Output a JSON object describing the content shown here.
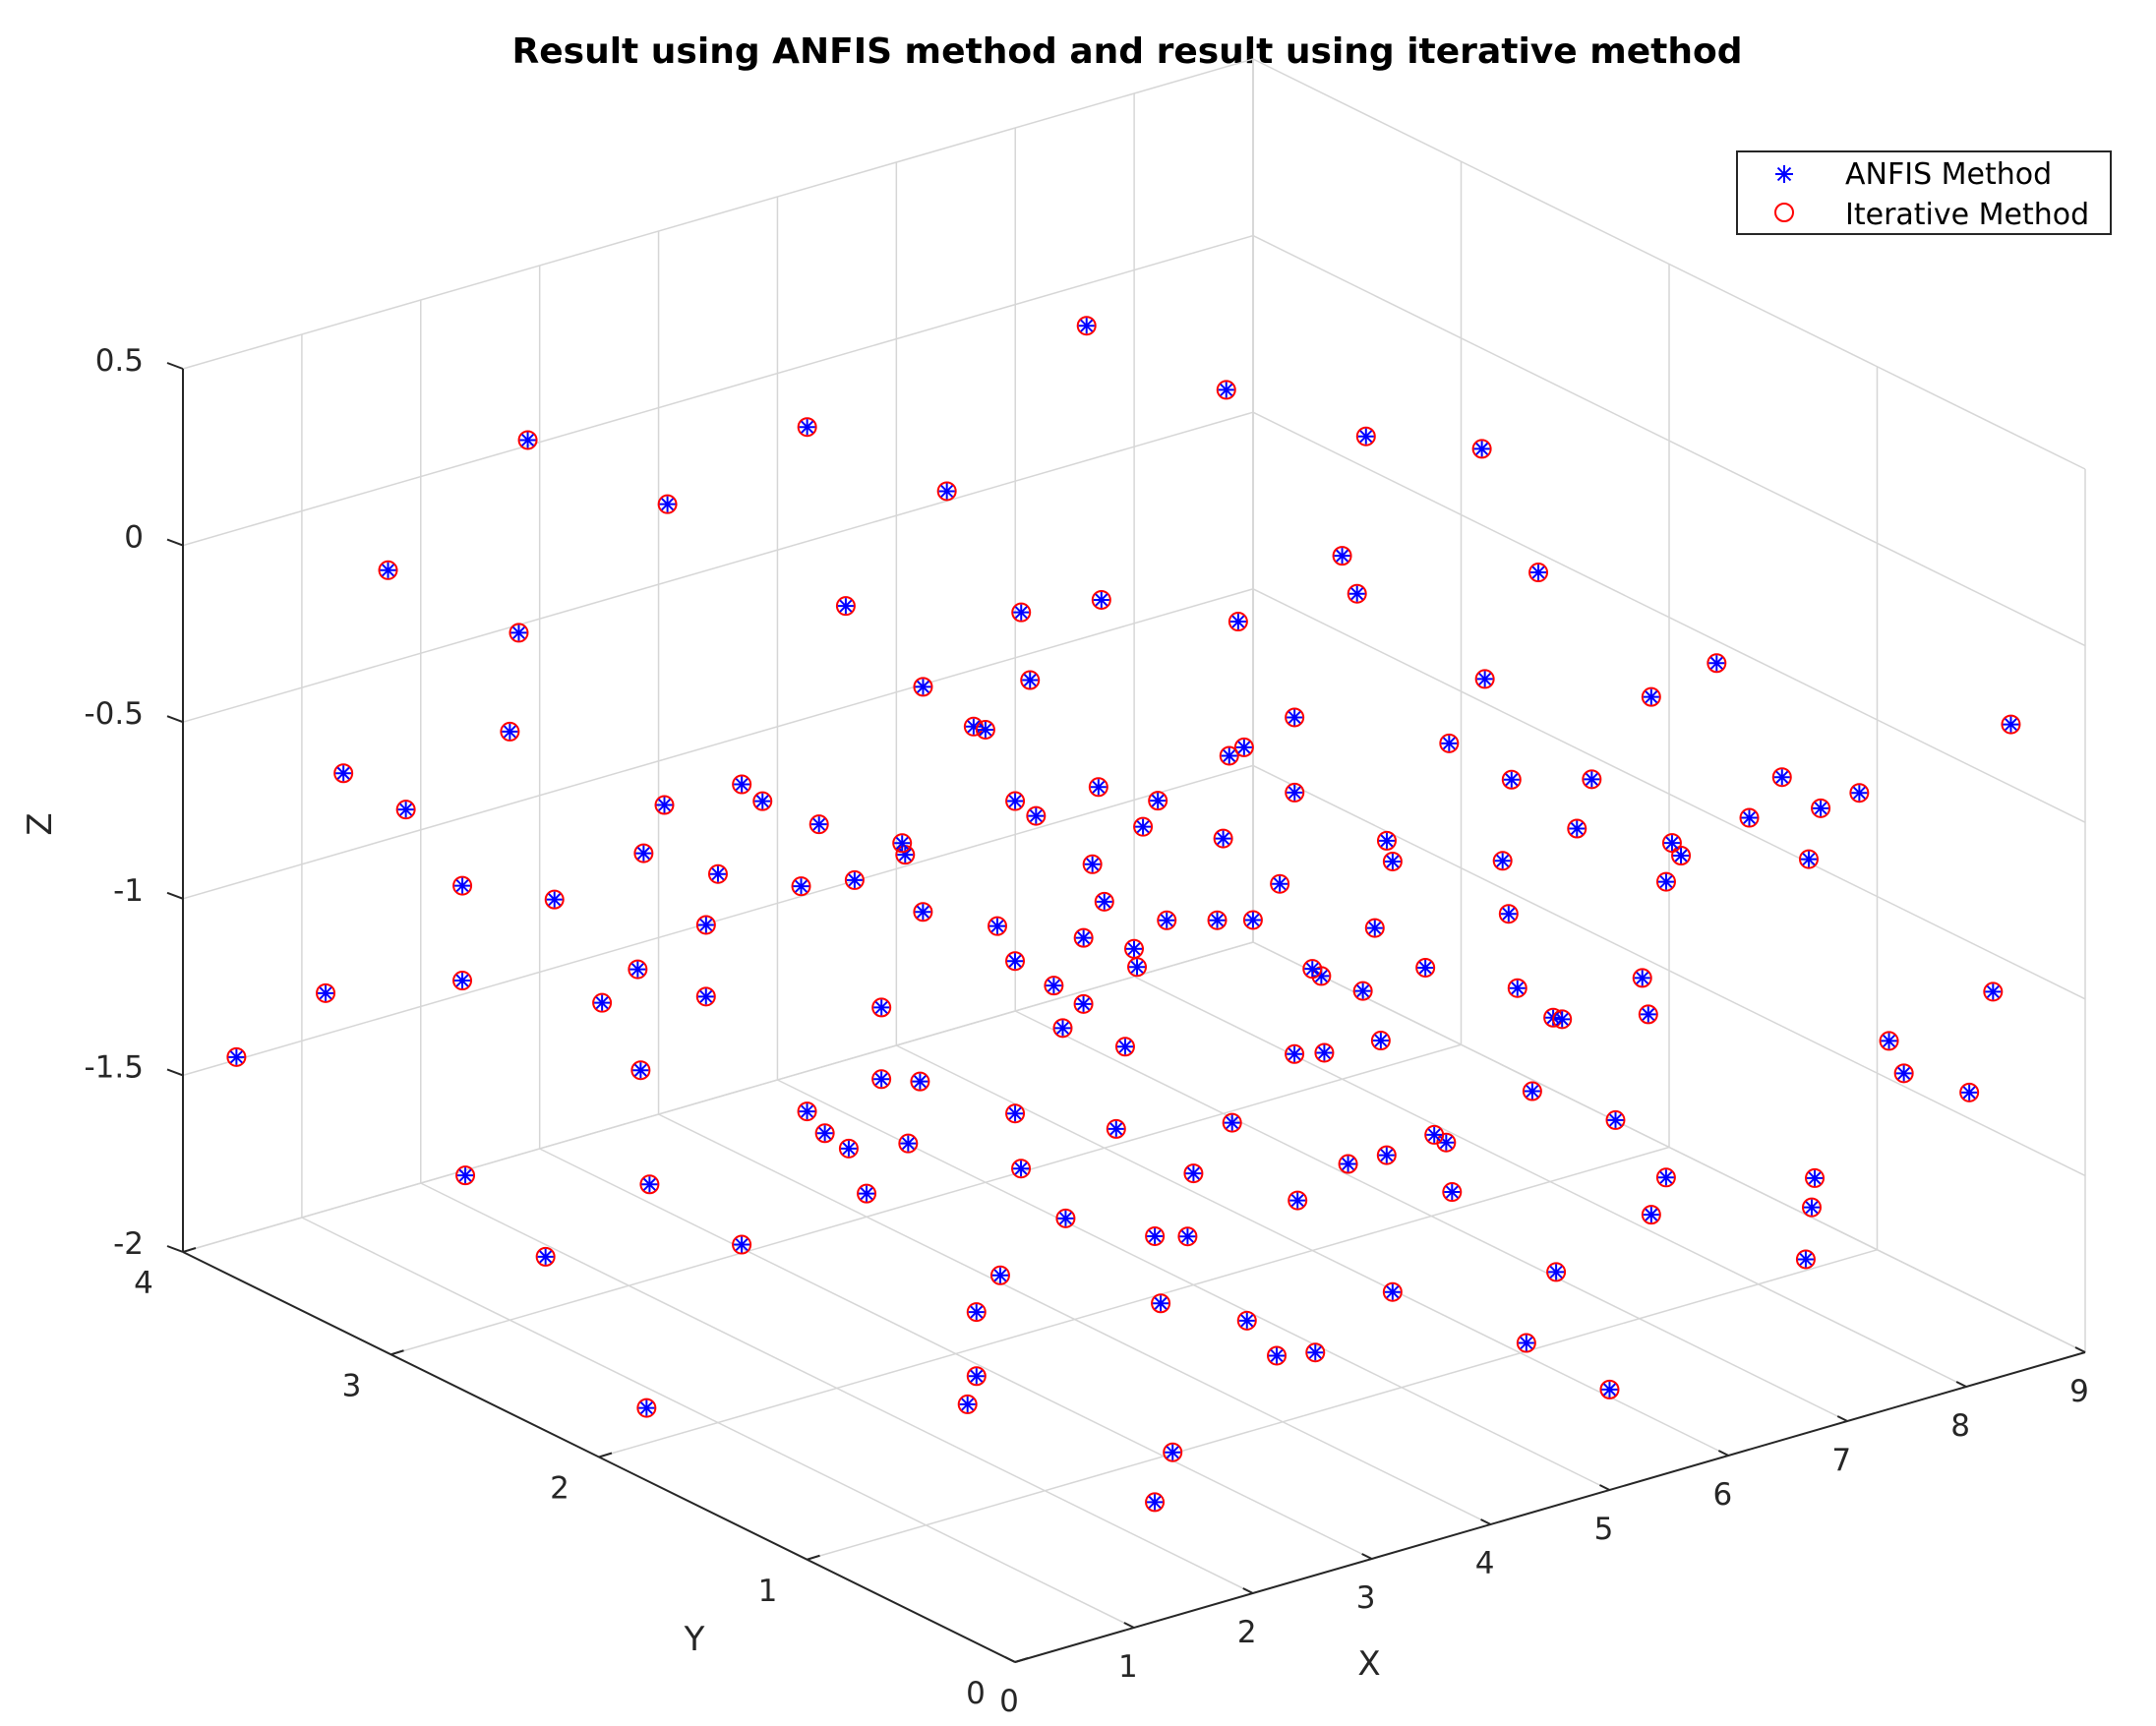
{
  "chart_data": {
    "type": "scatter3d",
    "title": "Result using ANFIS method and result using iterative method",
    "xlabel": "X",
    "ylabel": "Y",
    "zlabel": "Z",
    "xlim": [
      0,
      9
    ],
    "ylim": [
      0,
      4
    ],
    "zlim": [
      -2,
      0.5
    ],
    "xticks": [
      0,
      1,
      2,
      3,
      4,
      5,
      6,
      7,
      8,
      9
    ],
    "yticks": [
      0,
      1,
      2,
      3,
      4
    ],
    "zticks": [
      -2,
      -1.5,
      -1,
      -0.5,
      0,
      0.5
    ],
    "xtick_labels": [
      "0",
      "1",
      "2",
      "3",
      "4",
      "5",
      "6",
      "7",
      "8",
      "9"
    ],
    "ytick_labels": [
      "0",
      "1",
      "2",
      "3",
      "4"
    ],
    "ztick_labels": [
      "-2",
      "-1.5",
      "-1",
      "-0.5",
      "0",
      "0.5"
    ],
    "grid": true,
    "legend_position": "top-right",
    "series": [
      {
        "name": "ANFIS Method",
        "marker": "asterisk",
        "color": "#0000ff"
      },
      {
        "name": "Iterative Method",
        "marker": "circle",
        "color": "#ff0000"
      }
    ],
    "points_note": "",
    "points": [
      [
        0.3,
        3.4,
        -0.5
      ],
      [
        0.5,
        3.6,
        -1.2
      ],
      [
        0.8,
        3.1,
        -1.6
      ],
      [
        1.2,
        2.9,
        -0.8
      ],
      [
        1.6,
        3.3,
        -0.2
      ],
      [
        2.1,
        3.0,
        -1.4
      ],
      [
        2.6,
        2.7,
        -0.6
      ],
      [
        3.1,
        3.2,
        -1.0
      ],
      [
        3.5,
        2.8,
        -1.7
      ],
      [
        4.0,
        3.1,
        -0.3
      ],
      [
        4.4,
        2.6,
        -1.1
      ],
      [
        4.9,
        3.0,
        -0.7
      ],
      [
        5.3,
        2.5,
        -1.5
      ],
      [
        5.8,
        2.9,
        -0.4
      ],
      [
        6.2,
        2.4,
        -1.2
      ],
      [
        6.7,
        2.8,
        -0.9
      ],
      [
        7.1,
        2.3,
        -1.6
      ],
      [
        7.6,
        2.7,
        -0.5
      ],
      [
        8.0,
        2.2,
        -1.3
      ],
      [
        8.5,
        2.6,
        -0.8
      ],
      [
        0.9,
        2.2,
        -0.3
      ],
      [
        1.4,
        1.8,
        -1.1
      ],
      [
        1.9,
        2.4,
        -1.7
      ],
      [
        2.4,
        1.9,
        -0.5
      ],
      [
        2.9,
        2.3,
        -1.3
      ],
      [
        3.3,
        1.7,
        -0.9
      ],
      [
        3.8,
        2.1,
        -0.2
      ],
      [
        4.3,
        1.6,
        -1.5
      ],
      [
        4.7,
        2.0,
        -0.6
      ],
      [
        5.2,
        1.5,
        -1.0
      ],
      [
        5.7,
        1.9,
        -1.8
      ],
      [
        6.1,
        1.4,
        -0.4
      ],
      [
        6.6,
        1.8,
        -1.2
      ],
      [
        7.0,
        1.3,
        -0.7
      ],
      [
        7.5,
        1.7,
        -1.4
      ],
      [
        8.0,
        1.2,
        -0.3
      ],
      [
        8.4,
        1.6,
        -1.0
      ],
      [
        0.5,
        1.2,
        -0.9
      ],
      [
        1.0,
        0.8,
        -1.6
      ],
      [
        1.5,
        1.3,
        -0.4
      ],
      [
        2.0,
        0.9,
        -1.2
      ],
      [
        2.5,
        1.1,
        -0.7
      ],
      [
        3.0,
        0.6,
        -1.5
      ],
      [
        3.5,
        1.0,
        -0.3
      ],
      [
        4.0,
        0.5,
        -1.1
      ],
      [
        4.5,
        0.9,
        -0.8
      ],
      [
        5.0,
        0.4,
        -1.7
      ],
      [
        5.5,
        0.8,
        -0.5
      ],
      [
        6.0,
        0.3,
        -1.3
      ],
      [
        6.5,
        0.7,
        -0.9
      ],
      [
        7.0,
        0.2,
        -1.6
      ],
      [
        7.5,
        0.6,
        -0.4
      ],
      [
        8.0,
        0.3,
        -1.2
      ],
      [
        8.5,
        0.8,
        -0.6
      ],
      [
        1.2,
        3.7,
        -0.1
      ],
      [
        2.2,
        3.6,
        0.2
      ],
      [
        3.2,
        3.5,
        -0.05
      ],
      [
        4.2,
        3.4,
        0.1
      ],
      [
        5.2,
        3.3,
        -0.15
      ],
      [
        6.2,
        3.2,
        0.25
      ],
      [
        7.2,
        3.1,
        0.0
      ],
      [
        8.2,
        3.0,
        -0.2
      ],
      [
        0.7,
        0.4,
        -0.2
      ],
      [
        1.7,
        0.3,
        -1.8
      ],
      [
        2.7,
        0.2,
        -0.6
      ],
      [
        3.7,
        0.3,
        -1.4
      ],
      [
        4.7,
        0.2,
        -0.9
      ],
      [
        5.7,
        0.4,
        -1.9
      ],
      [
        6.7,
        0.3,
        -0.35
      ],
      [
        7.7,
        0.2,
        -1.05
      ],
      [
        0.4,
        2.0,
        -1.9
      ],
      [
        1.3,
        2.5,
        -1.5
      ],
      [
        2.3,
        1.5,
        -1.85
      ],
      [
        3.3,
        2.6,
        -1.75
      ],
      [
        4.3,
        1.2,
        -1.9
      ],
      [
        5.3,
        2.2,
        -1.95
      ],
      [
        6.3,
        1.0,
        -1.8
      ],
      [
        7.3,
        2.1,
        -1.85
      ],
      [
        8.3,
        0.9,
        -1.7
      ],
      [
        8.8,
        1.9,
        -1.2
      ],
      [
        0.2,
        1.6,
        -0.6
      ],
      [
        1.1,
        1.4,
        -0.3
      ],
      [
        2.1,
        1.2,
        -1.0
      ],
      [
        3.1,
        1.4,
        -0.45
      ],
      [
        4.1,
        1.3,
        -1.25
      ],
      [
        5.1,
        1.1,
        -0.55
      ],
      [
        6.1,
        2.0,
        -1.45
      ],
      [
        7.1,
        1.0,
        -0.25
      ],
      [
        8.1,
        2.0,
        -1.55
      ],
      [
        8.7,
        1.1,
        -0.75
      ],
      [
        0.6,
        3.0,
        -1.0
      ],
      [
        1.6,
        2.7,
        -0.65
      ],
      [
        2.6,
        3.3,
        -1.25
      ],
      [
        3.6,
        3.0,
        -0.85
      ],
      [
        4.6,
        2.4,
        -1.35
      ],
      [
        5.6,
        3.1,
        -1.05
      ],
      [
        6.6,
        2.2,
        -0.15
      ],
      [
        7.6,
        3.0,
        -1.15
      ],
      [
        8.6,
        2.4,
        -0.45
      ],
      [
        0.9,
        0.7,
        -1.3
      ],
      [
        1.9,
        0.6,
        -0.85
      ],
      [
        2.9,
        0.9,
        -1.95
      ],
      [
        3.9,
        0.8,
        -0.65
      ],
      [
        4.9,
        0.7,
        -1.35
      ],
      [
        5.9,
        0.6,
        -0.25
      ],
      [
        6.9,
        0.9,
        -1.1
      ],
      [
        7.9,
        0.7,
        -0.7
      ],
      [
        8.9,
        0.5,
        -1.4
      ],
      [
        0.3,
        2.6,
        -0.15
      ],
      [
        1.3,
        3.0,
        -1.85
      ],
      [
        2.3,
        2.8,
        -0.95
      ],
      [
        3.3,
        2.4,
        -1.55
      ],
      [
        4.3,
        2.9,
        -0.5
      ],
      [
        5.3,
        2.7,
        -1.25
      ],
      [
        6.3,
        2.5,
        -0.75
      ],
      [
        7.3,
        2.9,
        -1.35
      ],
      [
        8.3,
        2.5,
        -0.1
      ],
      [
        0.8,
        1.0,
        -0.05
      ],
      [
        1.8,
        1.1,
        -1.4
      ],
      [
        2.8,
        1.6,
        -0.3
      ],
      [
        3.8,
        1.5,
        -1.6
      ],
      [
        4.8,
        1.4,
        -0.2
      ],
      [
        5.8,
        1.3,
        -1.45
      ],
      [
        6.8,
        1.5,
        -0.6
      ],
      [
        7.8,
        1.4,
        -1.9
      ],
      [
        0.1,
        3.8,
        -1.4
      ],
      [
        1.0,
        3.5,
        -0.7
      ],
      [
        2.0,
        3.8,
        -1.1
      ],
      [
        3.0,
        3.7,
        -1.5
      ],
      [
        4.0,
        3.6,
        -0.95
      ],
      [
        5.0,
        3.5,
        -1.65
      ],
      [
        6.0,
        3.4,
        -0.6
      ],
      [
        7.0,
        3.6,
        -1.25
      ],
      [
        8.0,
        3.5,
        -0.85
      ],
      [
        8.9,
        3.3,
        -1.5
      ],
      [
        0.4,
        0.2,
        -0.7
      ],
      [
        1.4,
        0.1,
        -1.15
      ],
      [
        2.4,
        0.4,
        -0.25
      ],
      [
        3.4,
        0.5,
        -1.6
      ],
      [
        4.4,
        0.1,
        -0.55
      ],
      [
        5.4,
        0.2,
        -1.05
      ],
      [
        6.4,
        0.5,
        -0.45
      ],
      [
        7.4,
        0.4,
        -1.55
      ],
      [
        8.4,
        0.1,
        -0.95
      ],
      [
        8.9,
        0.3,
        -0.3
      ],
      [
        4.5,
        2.0,
        -1.0
      ],
      [
        4.6,
        1.9,
        -0.9
      ],
      [
        4.7,
        2.1,
        -1.1
      ],
      [
        3.9,
        1.8,
        -0.75
      ],
      [
        5.1,
        2.3,
        -0.8
      ],
      [
        2.7,
        2.0,
        -1.2
      ],
      [
        6.0,
        1.7,
        -1.0
      ],
      [
        3.6,
        2.2,
        -0.35
      ],
      [
        5.6,
        1.6,
        -1.6
      ],
      [
        1.7,
        2.0,
        -0.55
      ]
    ]
  }
}
